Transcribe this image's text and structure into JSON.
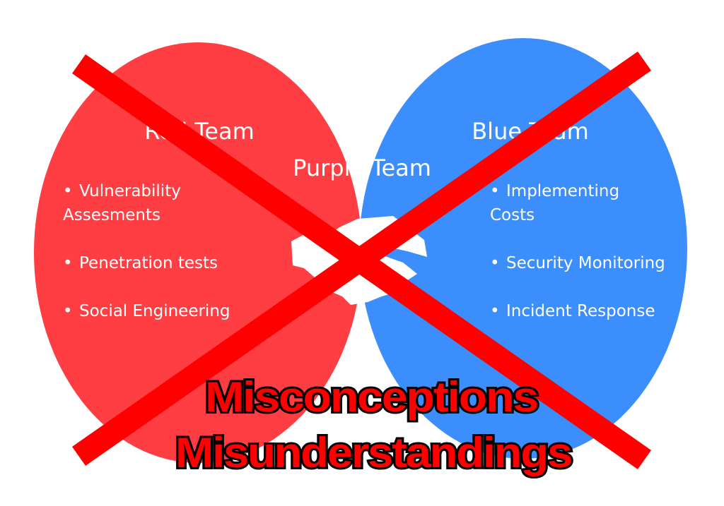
{
  "colors": {
    "red_team": "#FE3E42",
    "blue_team": "#3B8EFC",
    "purple_team": "#7853F0",
    "cross": "#FF0000",
    "text": "#FFFFFF",
    "banner_fill": "#FF0000",
    "banner_outline": "#000000"
  },
  "red_team": {
    "title": "Red Team",
    "items": [
      {
        "bullet": "•",
        "lines": [
          "Vulnerability",
          "Assesments"
        ]
      },
      {
        "bullet": "•",
        "lines": [
          "Penetration tests"
        ]
      },
      {
        "bullet": "•",
        "lines": [
          "Social Engineering"
        ]
      }
    ]
  },
  "purple_team": {
    "title": "Purple Team",
    "icon": "handshake-icon"
  },
  "blue_team": {
    "title": "Blue Team",
    "items": [
      {
        "bullet": "•",
        "lines": [
          "Implementing",
          "Costs"
        ]
      },
      {
        "bullet": "•",
        "lines": [
          "Security Monitoring"
        ]
      },
      {
        "bullet": "•",
        "lines": [
          "Incident Response"
        ]
      }
    ]
  },
  "overlay": {
    "cross_icon": "cross-out-icon",
    "line1": "Misconceptions",
    "line2": "Misunderstandings"
  }
}
